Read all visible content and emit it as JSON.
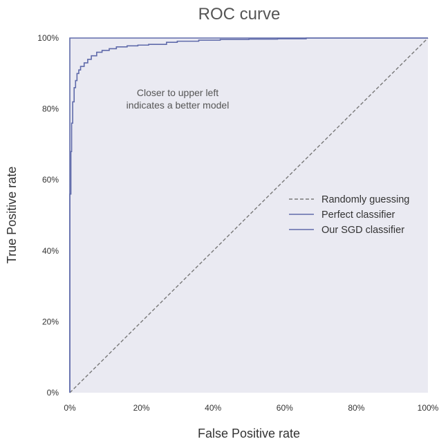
{
  "chart_data": {
    "type": "line",
    "title": "ROC curve",
    "xlabel": "False Positive rate",
    "ylabel": "True Positive rate",
    "xlim": [
      0,
      1
    ],
    "ylim": [
      0,
      1
    ],
    "x_ticks": [
      "0%",
      "20%",
      "40%",
      "60%",
      "80%",
      "100%"
    ],
    "y_ticks": [
      "0%",
      "20%",
      "40%",
      "60%",
      "80%",
      "100%"
    ],
    "grid": false,
    "legend_position": "center-right",
    "annotation": [
      "Closer to upper left",
      "indicates a better model"
    ],
    "series": [
      {
        "name": "Randomly guessing",
        "style": "dashed",
        "color": "#777777",
        "x": [
          0,
          1
        ],
        "y": [
          0,
          1
        ]
      },
      {
        "name": "Perfect classifier",
        "style": "solid",
        "color": "#5f6aaa",
        "x": [
          0,
          0,
          1
        ],
        "y": [
          0,
          1,
          1
        ]
      },
      {
        "name": "Our SGD classifier",
        "style": "solid",
        "color": "#5f6aaa",
        "x": [
          0,
          0,
          0.003,
          0.003,
          0.005,
          0.005,
          0.008,
          0.008,
          0.012,
          0.012,
          0.016,
          0.016,
          0.02,
          0.02,
          0.025,
          0.025,
          0.03,
          0.03,
          0.04,
          0.04,
          0.05,
          0.05,
          0.06,
          0.06,
          0.075,
          0.075,
          0.09,
          0.09,
          0.11,
          0.11,
          0.13,
          0.13,
          0.16,
          0.16,
          0.19,
          0.19,
          0.22,
          0.22,
          0.27,
          0.27,
          0.3,
          0.3,
          0.36,
          0.36,
          0.42,
          0.42,
          0.5,
          0.5,
          0.58,
          0.58,
          0.66,
          0.66,
          1
        ],
        "y": [
          0,
          0.56,
          0.56,
          0.68,
          0.68,
          0.76,
          0.76,
          0.82,
          0.82,
          0.86,
          0.86,
          0.88,
          0.88,
          0.9,
          0.9,
          0.91,
          0.91,
          0.92,
          0.92,
          0.93,
          0.93,
          0.94,
          0.94,
          0.95,
          0.95,
          0.96,
          0.96,
          0.965,
          0.965,
          0.97,
          0.97,
          0.975,
          0.975,
          0.978,
          0.978,
          0.98,
          0.98,
          0.982,
          0.982,
          0.988,
          0.988,
          0.991,
          0.991,
          0.994,
          0.994,
          0.996,
          0.996,
          0.997,
          0.997,
          0.998,
          0.998,
          1,
          1
        ]
      }
    ],
    "colors": {
      "plot_background": "#eaeaf2",
      "roc_line": "#5f6aaa",
      "baseline": "#777777"
    }
  }
}
